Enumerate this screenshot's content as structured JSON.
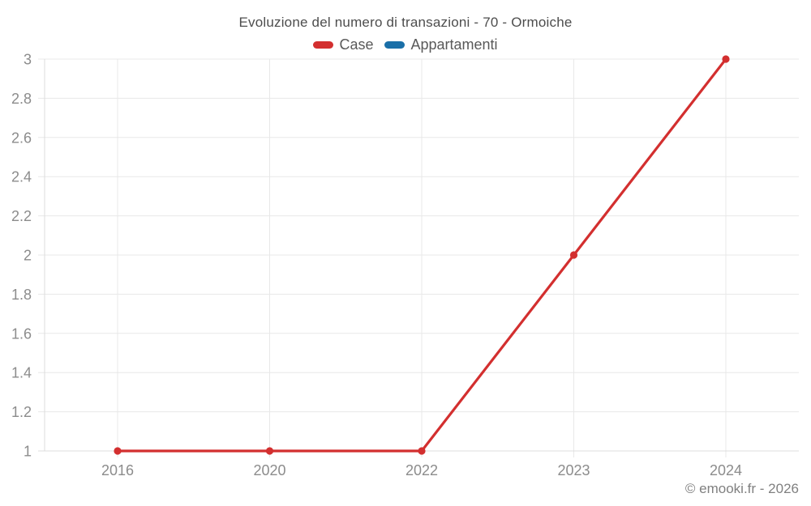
{
  "chart_data": {
    "type": "line",
    "title": "Evoluzione del numero di transazioni - 70 - Ormoiche",
    "categories": [
      "2016",
      "2020",
      "2022",
      "2023",
      "2024"
    ],
    "series": [
      {
        "name": "Case",
        "color": "#d32f2f",
        "values": [
          1,
          1,
          1,
          2,
          3
        ]
      },
      {
        "name": "Appartamenti",
        "color": "#1a6fa8",
        "values": []
      }
    ],
    "xlabel": "",
    "ylabel": "",
    "ylim": [
      1,
      3
    ],
    "ytick_step": 0.2,
    "grid": true,
    "legend_position": "top",
    "marker": "circle",
    "credit": "© emooki.fr - 2026",
    "grid_color": "#e8e8e8",
    "axis_color": "#dcdcdc",
    "tick_label_color": "#8c8c8c"
  }
}
